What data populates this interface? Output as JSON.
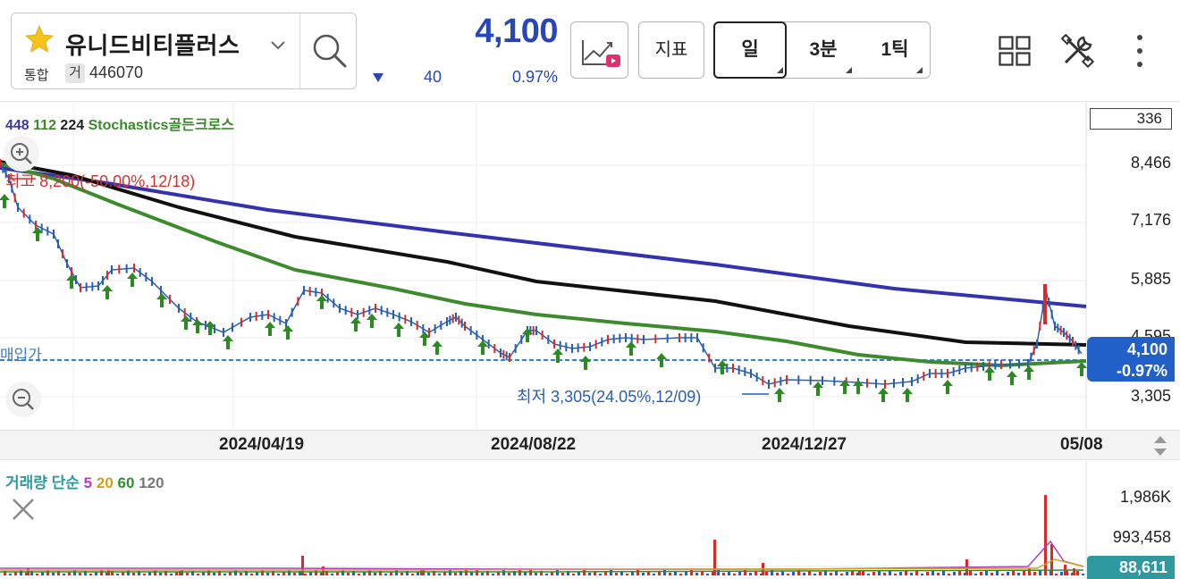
{
  "stock": {
    "name": "유니드비티플러스",
    "market": "통합",
    "code_badge": "거",
    "code": "446070",
    "price": "4,100",
    "change": "40",
    "change_pct": "0.97%"
  },
  "toolbar": {
    "indicator_label": "지표",
    "periods": [
      "일",
      "3분",
      "1틱"
    ]
  },
  "chart": {
    "legend": {
      "ma1": "448",
      "ma2": "112",
      "ma3": "224",
      "signal": "Stochastics골든크로스"
    },
    "candle_count": "336",
    "y_ticks": [
      "8,466",
      "7,176",
      "5,885",
      "4,595",
      "3,305"
    ],
    "x_ticks": [
      "2024/04/19",
      "2024/08/22",
      "2024/12/27",
      "05/08"
    ],
    "buy_price_label": "매입가",
    "current_price_tag": "4,100",
    "current_change_tag": "-0.97%",
    "high_label": "최고 8,200(-50.00%,12/18)",
    "low_label": "최저 3,305(24.05%,12/09)",
    "colors": {
      "ma448": "#3532b0",
      "ma112": "#3e8a2e",
      "ma224": "#111111",
      "up": "#d42b2b",
      "down": "#2a5fb0",
      "signal": "#2d8a23",
      "buy_line": "#3c7dc8"
    }
  },
  "volume": {
    "legend": {
      "title": "거래량",
      "mode": "단순",
      "ma5": "5",
      "ma20": "20",
      "ma60": "60",
      "ma120": "120"
    },
    "y_ticks": [
      "1,986K",
      "993,458"
    ],
    "current": "88,611"
  },
  "icons": {
    "favorite": "star-icon",
    "dropdown": "chevron-down-icon",
    "search": "search-icon",
    "chart_video": "chart-video-icon",
    "layout": "grid-icon",
    "settings": "tools-icon",
    "more": "more-vertical-icon",
    "zoom_in": "zoom-in-icon",
    "zoom_out": "zoom-out-icon",
    "close_volume": "close-icon",
    "scroll": "updown-icon"
  }
}
